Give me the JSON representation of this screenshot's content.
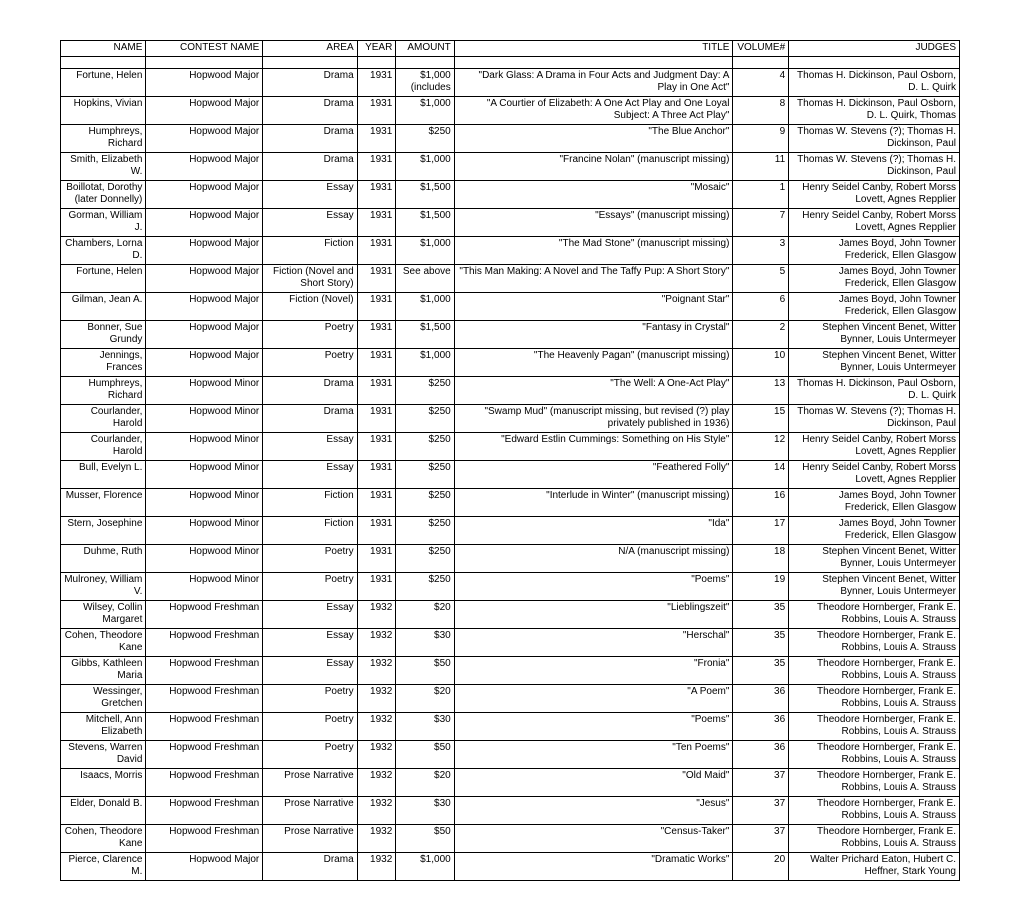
{
  "columns": [
    "NAME",
    "CONTEST NAME",
    "AREA",
    "YEAR",
    "AMOUNT",
    "TITLE",
    "VOLUME#",
    "JUDGES"
  ],
  "col_align": [
    "right",
    "right",
    "right",
    "right",
    "right",
    "left",
    "right",
    "right"
  ],
  "rows": [
    {
      "name": "Fortune, Helen",
      "contest": "Hopwood Major",
      "area": "Drama",
      "year": "1931",
      "amount": "$1,000 (includes",
      "title": "\"Dark Glass: A Drama in Four Acts and Judgment Day: A Play in One Act\"",
      "title_align": "right",
      "volume": "4",
      "judges": "Thomas H. Dickinson, Paul Osborn, D. L. Quirk"
    },
    {
      "name": "Hopkins, Vivian",
      "contest": "Hopwood Major",
      "area": "Drama",
      "year": "1931",
      "amount": "$1,000",
      "title": "\"A Courtier of Elizabeth: A One Act Play and One Loyal Subject: A Three Act Play\"",
      "title_align": "right",
      "volume": "8",
      "judges": "Thomas H. Dickinson, Paul Osborn, D. L. Quirk, Thomas"
    },
    {
      "name": "Humphreys, Richard",
      "contest": "Hopwood Major",
      "area": "Drama",
      "year": "1931",
      "amount": "$250",
      "title": "\"The Blue Anchor\"",
      "title_align": "right",
      "volume": "9",
      "judges": "Thomas W. Stevens (?); Thomas H. Dickinson, Paul"
    },
    {
      "name": "Smith, Elizabeth W.",
      "contest": "Hopwood Major",
      "area": "Drama",
      "year": "1931",
      "amount": "$1,000",
      "title": "\"Francine Nolan\" (manuscript missing)",
      "title_align": "right",
      "volume": "11",
      "judges": "Thomas W. Stevens (?); Thomas H. Dickinson, Paul"
    },
    {
      "name": "Boillotat, Dorothy (later Donnelly)",
      "contest": "Hopwood Major",
      "area": "Essay",
      "year": "1931",
      "amount": "$1,500",
      "title": "\"Mosaic\"",
      "title_align": "right",
      "volume": "1",
      "judges": "Henry Seidel Canby, Robert Morss Lovett, Agnes Repplier"
    },
    {
      "name": "Gorman, William J.",
      "contest": "Hopwood Major",
      "area": "Essay",
      "year": "1931",
      "amount": "$1,500",
      "title": "\"Essays\" (manuscript missing)",
      "title_align": "right",
      "volume": "7",
      "judges": "Henry Seidel Canby, Robert Morss Lovett, Agnes Repplier"
    },
    {
      "name": "Chambers, Lorna D.",
      "contest": "Hopwood Major",
      "area": "Fiction",
      "year": "1931",
      "amount": "$1,000",
      "title": "\"The Mad Stone\" (manuscript missing)",
      "title_align": "right",
      "volume": "3",
      "judges": "James Boyd, John Towner Frederick, Ellen Glasgow"
    },
    {
      "name": "Fortune, Helen",
      "contest": "Hopwood Major",
      "area": "Fiction (Novel and Short Story)",
      "year": "1931",
      "amount": "See above",
      "title": "\"This Man Making: A Novel and The Taffy Pup: A Short Story\"",
      "title_align": "right",
      "volume": "5",
      "judges": "James Boyd, John Towner Frederick, Ellen Glasgow"
    },
    {
      "name": "Gilman, Jean A.",
      "contest": "Hopwood Major",
      "area": "Fiction (Novel)",
      "year": "1931",
      "amount": "$1,000",
      "title": "\"Poignant Star\"",
      "title_align": "right",
      "volume": "6",
      "judges": "James Boyd, John Towner Frederick, Ellen Glasgow"
    },
    {
      "name": "Bonner, Sue Grundy",
      "contest": "Hopwood Major",
      "area": "Poetry",
      "year": "1931",
      "amount": "$1,500",
      "title": "\"Fantasy in Crystal\"",
      "title_align": "right",
      "volume": "2",
      "judges": "Stephen Vincent Benet, Witter Bynner, Louis Untermeyer"
    },
    {
      "name": "Jennings, Frances",
      "contest": "Hopwood Major",
      "area": "Poetry",
      "year": "1931",
      "amount": "$1,000",
      "title": "\"The Heavenly Pagan\" (manuscript missing)",
      "title_align": "right",
      "volume": "10",
      "judges": "Stephen Vincent Benet, Witter Bynner, Louis Untermeyer"
    },
    {
      "name": "Humphreys, Richard",
      "contest": "Hopwood Minor",
      "area": "Drama",
      "year": "1931",
      "amount": "$250",
      "title": "\"The Well: A One-Act Play\"",
      "title_align": "right",
      "volume": "13",
      "judges": "Thomas H. Dickinson, Paul Osborn, D. L. Quirk"
    },
    {
      "name": "Courlander, Harold",
      "contest": "Hopwood Minor",
      "area": "Drama",
      "year": "1931",
      "amount": "$250",
      "title": "\"Swamp Mud\" (manuscript missing, but revised (?) play privately published in 1936)",
      "title_align": "right",
      "volume": "15",
      "judges": "Thomas W. Stevens (?); Thomas H. Dickinson, Paul"
    },
    {
      "name": "Courlander, Harold",
      "contest": "Hopwood Minor",
      "area": "Essay",
      "year": "1931",
      "amount": "$250",
      "title": "\"Edward Estlin Cummings: Something on His Style\"",
      "title_align": "right",
      "volume": "12",
      "judges": "Henry Seidel Canby, Robert Morss Lovett, Agnes Repplier"
    },
    {
      "name": "Bull, Evelyn L.",
      "contest": "Hopwood Minor",
      "area": "Essay",
      "year": "1931",
      "amount": "$250",
      "title": "\"Feathered Folly\"",
      "title_align": "right",
      "volume": "14",
      "judges": "Henry Seidel Canby, Robert Morss Lovett, Agnes Repplier"
    },
    {
      "name": "Musser, Florence",
      "contest": "Hopwood Minor",
      "area": "Fiction",
      "year": "1931",
      "amount": "$250",
      "title": "\"Interlude in Winter\" (manuscript missing)",
      "title_align": "right",
      "volume": "16",
      "judges": "James Boyd, John Towner Frederick, Ellen Glasgow"
    },
    {
      "name": "Stern, Josephine",
      "contest": "Hopwood Minor",
      "area": "Fiction",
      "year": "1931",
      "amount": "$250",
      "title": "\"Ida\"",
      "title_align": "right",
      "volume": "17",
      "judges": "James Boyd, John Towner Frederick, Ellen Glasgow"
    },
    {
      "name": "Duhme, Ruth",
      "contest": "Hopwood Minor",
      "area": "Poetry",
      "year": "1931",
      "amount": "$250",
      "title": "N/A (manuscript missing)",
      "title_align": "right",
      "volume": "18",
      "judges": "Stephen Vincent Benet, Witter Bynner, Louis Untermeyer"
    },
    {
      "name": "Mulroney, William V.",
      "contest": "Hopwood Minor",
      "area": "Poetry",
      "year": "1931",
      "amount": "$250",
      "title": "\"Poems\"",
      "title_align": "right",
      "volume": "19",
      "judges": "Stephen Vincent Benet, Witter Bynner, Louis Untermeyer"
    },
    {
      "name": "Wilsey, Collin Margaret",
      "contest": "Hopwood Freshman",
      "area": "Essay",
      "year": "1932",
      "amount": "$20",
      "title": "\"Lieblingszeit\"",
      "title_align": "right",
      "volume": "35",
      "judges": "Theodore Hornberger, Frank E. Robbins, Louis A. Strauss"
    },
    {
      "name": "Cohen, Theodore Kane",
      "contest": "Hopwood Freshman",
      "area": "Essay",
      "year": "1932",
      "amount": "$30",
      "title": "\"Herschal\"",
      "title_align": "right",
      "volume": "35",
      "judges": "Theodore Hornberger, Frank E. Robbins, Louis A. Strauss"
    },
    {
      "name": "Gibbs, Kathleen Maria",
      "contest": "Hopwood Freshman",
      "area": "Essay",
      "year": "1932",
      "amount": "$50",
      "title": "\"Fronia\"",
      "title_align": "right",
      "volume": "35",
      "judges": "Theodore Hornberger, Frank E. Robbins, Louis A. Strauss"
    },
    {
      "name": "Wessinger, Gretchen",
      "contest": "Hopwood Freshman",
      "area": "Poetry",
      "year": "1932",
      "amount": "$20",
      "title": "\"A Poem\"",
      "title_align": "right",
      "volume": "36",
      "judges": "Theodore Hornberger, Frank E. Robbins, Louis A. Strauss"
    },
    {
      "name": "Mitchell, Ann Elizabeth",
      "contest": "Hopwood Freshman",
      "area": "Poetry",
      "year": "1932",
      "amount": "$30",
      "title": "\"Poems\"",
      "title_align": "right",
      "volume": "36",
      "judges": "Theodore Hornberger, Frank E. Robbins, Louis A. Strauss"
    },
    {
      "name": "Stevens, Warren David",
      "contest": "Hopwood Freshman",
      "area": "Poetry",
      "year": "1932",
      "amount": "$50",
      "title": "\"Ten Poems\"",
      "title_align": "right",
      "volume": "36",
      "judges": "Theodore Hornberger, Frank E. Robbins, Louis A. Strauss"
    },
    {
      "name": "Isaacs, Morris",
      "contest": "Hopwood Freshman",
      "area": "Prose Narrative",
      "year": "1932",
      "amount": "$20",
      "title": "\"Old Maid\"",
      "title_align": "right",
      "volume": "37",
      "judges": "Theodore Hornberger, Frank E. Robbins, Louis A. Strauss"
    },
    {
      "name": "Elder, Donald B.",
      "contest": "Hopwood Freshman",
      "area": "Prose Narrative",
      "year": "1932",
      "amount": "$30",
      "title": "\"Jesus\"",
      "title_align": "right",
      "volume": "37",
      "judges": "Theodore Hornberger, Frank E. Robbins, Louis A. Strauss"
    },
    {
      "name": "Cohen, Theodore Kane",
      "contest": "Hopwood Freshman",
      "area": "Prose Narrative",
      "year": "1932",
      "amount": "$50",
      "title": "\"Census-Taker\"",
      "title_align": "right",
      "volume": "37",
      "judges": "Theodore Hornberger, Frank E. Robbins, Louis A. Strauss"
    },
    {
      "name": "Pierce, Clarence M.",
      "contest": "Hopwood Major",
      "area": "Drama",
      "year": "1932",
      "amount": "$1,000",
      "title": "\"Dramatic Works\"",
      "title_align": "right",
      "volume": "20",
      "judges": "Walter Prichard Eaton, Hubert C. Heffner, Stark Young"
    }
  ]
}
